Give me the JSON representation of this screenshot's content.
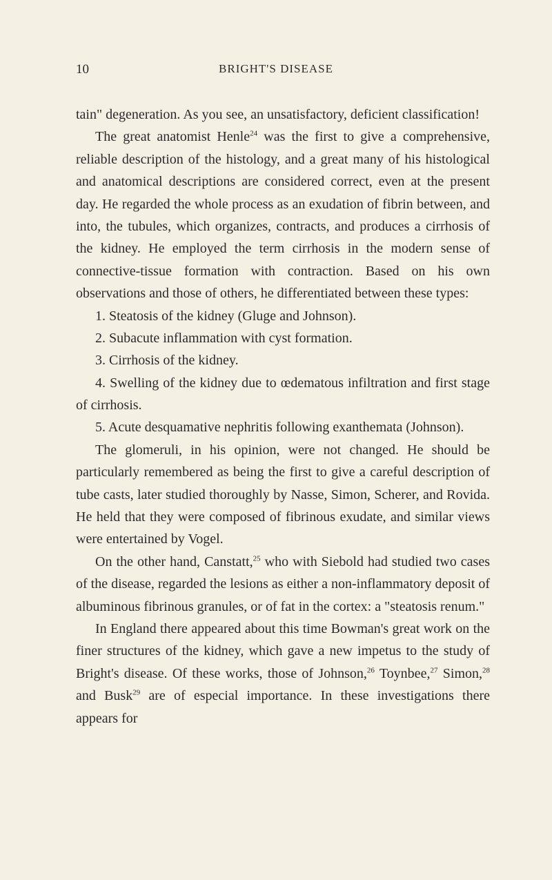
{
  "pageNumber": "10",
  "header": "BRIGHT'S DISEASE",
  "paragraphs": {
    "p1": "tain\" degeneration. As you see, an unsatisfactory, deficient classification!",
    "p2a": "The great anatomist Henle",
    "p2sup": "24",
    "p2b": " was the first to give a comprehensive, reliable description of the histology, and a great many of his histological and anatomical descriptions are considered correct, even at the present day. He regarded the whole process as an exudation of fibrin between, and into, the tubules, which organizes, contracts, and produces a cirrhosis of the kidney. He employed the term cirrhosis in the modern sense of connective-tissue formation with contraction. Based on his own observations and those of others, he differentiated between these types:",
    "li1": "1. Steatosis of the kidney (Gluge and Johnson).",
    "li2": "2. Subacute inflammation with cyst formation.",
    "li3": "3. Cirrhosis of the kidney.",
    "li4": "4. Swelling of the kidney due to œdematous infiltration and first stage of cirrhosis.",
    "li5": "5. Acute desquamative nephritis following exanthemata (Johnson).",
    "p3a": "The glomeruli, in his opinion, were not changed. He should be particularly remembered as being the first to give a careful description of tube casts, later studied thoroughly by Nasse, Simon, Scherer, and Rovida. He held that they were composed of fibrinous exudate, and similar views were entertained by Vogel.",
    "p4a": "On the other hand, Canstatt,",
    "p4sup": "25",
    "p4b": " who with Siebold had studied two cases of the disease, regarded the lesions as either a non-inflammatory deposit of albuminous fibrinous granules, or of fat in the cortex: a \"steatosis renum.\"",
    "p5a": "In England there appeared about this time Bowman's great work on the finer structures of the kidney, which gave a new impetus to the study of Bright's disease. Of these works, those of Johnson,",
    "p5sup1": "26",
    "p5b": " Toynbee,",
    "p5sup2": "27",
    "p5c": " Simon,",
    "p5sup3": "28",
    "p5d": " and Busk",
    "p5sup4": "29",
    "p5e": " are of especial importance. In these investigations there appears for"
  }
}
